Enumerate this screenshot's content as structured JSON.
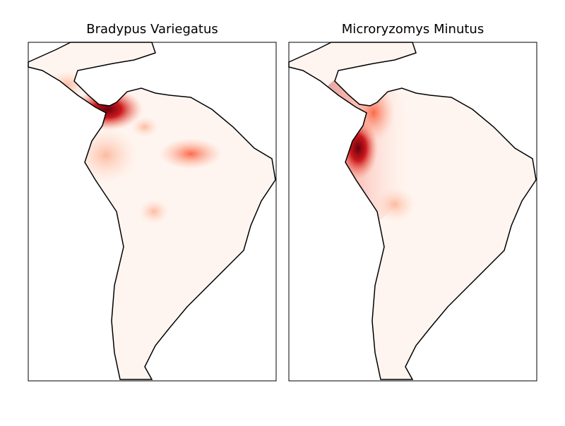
{
  "maps": [
    {
      "title": "Bradypus Variegatus"
    },
    {
      "title": "Microryzomys Minutus"
    }
  ]
}
